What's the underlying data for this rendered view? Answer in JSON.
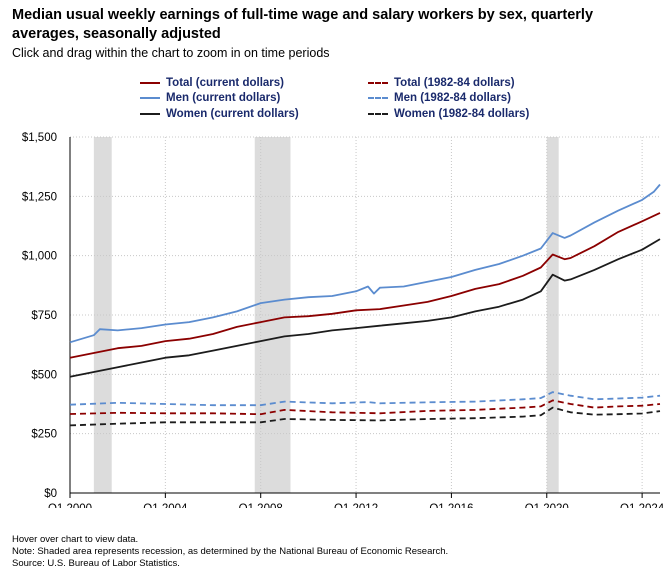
{
  "page": {
    "title": "Median usual weekly earnings of full-time wage and salary workers by sex, quarterly averages, seasonally adjusted",
    "subtitle": "Click and drag within the chart to zoom in on time periods",
    "notes": [
      "Hover over chart to view data.",
      "Note: Shaded area represents recession, as determined by the National Bureau of Economic Research.",
      "Source: U.S. Bureau of Labor Statistics."
    ]
  },
  "chart_data": {
    "type": "line",
    "title": "Median usual weekly earnings of full-time wage and salary workers by sex, quarterly averages, seasonally adjusted",
    "xlabel": "",
    "ylabel": "",
    "x_range": [
      2000.0,
      2024.75
    ],
    "ylim": [
      0,
      1500
    ],
    "y_ticks": [
      0,
      250,
      500,
      750,
      1000,
      1250,
      1500
    ],
    "y_tick_labels": [
      "$0",
      "$250",
      "$500",
      "$750",
      "$1,000",
      "$1,250",
      "$1,500"
    ],
    "x_ticks": [
      2000,
      2004,
      2008,
      2012,
      2016,
      2020,
      2024
    ],
    "x_tick_labels": [
      "Q1 2000",
      "Q1 2004",
      "Q1 2008",
      "Q1 2012",
      "Q1 2016",
      "Q1 2020",
      "Q1 2024"
    ],
    "grid": true,
    "recessions": [
      {
        "start": 2001.0,
        "end": 2001.75
      },
      {
        "start": 2007.75,
        "end": 2009.25
      },
      {
        "start": 2020.0,
        "end": 2020.5
      }
    ],
    "series": [
      {
        "name": "Total (current dollars)",
        "color": "#8b0000",
        "dash": "solid",
        "points": [
          [
            2000,
            570
          ],
          [
            2001,
            590
          ],
          [
            2002,
            610
          ],
          [
            2003,
            620
          ],
          [
            2004,
            640
          ],
          [
            2005,
            650
          ],
          [
            2006,
            670
          ],
          [
            2007,
            700
          ],
          [
            2008,
            720
          ],
          [
            2009,
            740
          ],
          [
            2010,
            745
          ],
          [
            2011,
            755
          ],
          [
            2012,
            770
          ],
          [
            2013,
            775
          ],
          [
            2014,
            790
          ],
          [
            2015,
            805
          ],
          [
            2016,
            830
          ],
          [
            2017,
            860
          ],
          [
            2018,
            880
          ],
          [
            2019,
            915
          ],
          [
            2019.75,
            950
          ],
          [
            2020.25,
            1005
          ],
          [
            2020.75,
            985
          ],
          [
            2021,
            990
          ],
          [
            2022,
            1040
          ],
          [
            2023,
            1100
          ],
          [
            2024,
            1145
          ],
          [
            2024.75,
            1180
          ]
        ]
      },
      {
        "name": "Men (current dollars)",
        "color": "#5b8ccf",
        "dash": "solid",
        "points": [
          [
            2000,
            635
          ],
          [
            2001,
            665
          ],
          [
            2001.25,
            690
          ],
          [
            2002,
            685
          ],
          [
            2003,
            695
          ],
          [
            2004,
            710
          ],
          [
            2005,
            720
          ],
          [
            2006,
            740
          ],
          [
            2007,
            765
          ],
          [
            2008,
            800
          ],
          [
            2009,
            815
          ],
          [
            2010,
            825
          ],
          [
            2011,
            830
          ],
          [
            2012,
            850
          ],
          [
            2012.5,
            870
          ],
          [
            2012.75,
            840
          ],
          [
            2013,
            865
          ],
          [
            2014,
            870
          ],
          [
            2015,
            890
          ],
          [
            2016,
            910
          ],
          [
            2017,
            940
          ],
          [
            2018,
            965
          ],
          [
            2019,
            1000
          ],
          [
            2019.75,
            1030
          ],
          [
            2020.25,
            1095
          ],
          [
            2020.75,
            1075
          ],
          [
            2021,
            1085
          ],
          [
            2022,
            1140
          ],
          [
            2023,
            1190
          ],
          [
            2024,
            1235
          ],
          [
            2024.5,
            1270
          ],
          [
            2024.75,
            1300
          ]
        ]
      },
      {
        "name": "Women (current dollars)",
        "color": "#1c1c1c",
        "dash": "solid",
        "points": [
          [
            2000,
            490
          ],
          [
            2001,
            510
          ],
          [
            2002,
            530
          ],
          [
            2003,
            550
          ],
          [
            2004,
            570
          ],
          [
            2005,
            580
          ],
          [
            2006,
            600
          ],
          [
            2007,
            620
          ],
          [
            2008,
            640
          ],
          [
            2009,
            660
          ],
          [
            2010,
            670
          ],
          [
            2011,
            685
          ],
          [
            2012,
            695
          ],
          [
            2013,
            705
          ],
          [
            2014,
            715
          ],
          [
            2015,
            725
          ],
          [
            2016,
            740
          ],
          [
            2017,
            765
          ],
          [
            2018,
            785
          ],
          [
            2019,
            815
          ],
          [
            2019.75,
            850
          ],
          [
            2020.25,
            920
          ],
          [
            2020.75,
            895
          ],
          [
            2021,
            900
          ],
          [
            2022,
            940
          ],
          [
            2023,
            985
          ],
          [
            2024,
            1025
          ],
          [
            2024.75,
            1070
          ]
        ]
      },
      {
        "name": "Total (1982-84 dollars)",
        "color": "#8b0000",
        "dash": "dashed",
        "points": [
          [
            2000,
            333
          ],
          [
            2002,
            338
          ],
          [
            2004,
            336
          ],
          [
            2006,
            336
          ],
          [
            2008,
            332
          ],
          [
            2009,
            350
          ],
          [
            2011,
            340
          ],
          [
            2013,
            336
          ],
          [
            2015,
            346
          ],
          [
            2017,
            350
          ],
          [
            2019,
            360
          ],
          [
            2019.75,
            365
          ],
          [
            2020.25,
            390
          ],
          [
            2021,
            375
          ],
          [
            2022,
            360
          ],
          [
            2023,
            365
          ],
          [
            2024,
            368
          ],
          [
            2024.75,
            375
          ]
        ]
      },
      {
        "name": "Men (1982-84 dollars)",
        "color": "#5b8ccf",
        "dash": "dashed",
        "points": [
          [
            2000,
            372
          ],
          [
            2002,
            380
          ],
          [
            2004,
            375
          ],
          [
            2006,
            370
          ],
          [
            2008,
            370
          ],
          [
            2009,
            385
          ],
          [
            2011,
            378
          ],
          [
            2012.5,
            383
          ],
          [
            2013,
            378
          ],
          [
            2015,
            382
          ],
          [
            2017,
            385
          ],
          [
            2019,
            395
          ],
          [
            2019.75,
            400
          ],
          [
            2020.25,
            425
          ],
          [
            2021,
            410
          ],
          [
            2022,
            395
          ],
          [
            2023,
            398
          ],
          [
            2024,
            402
          ],
          [
            2024.75,
            410
          ]
        ]
      },
      {
        "name": "Women (1982-84 dollars)",
        "color": "#1c1c1c",
        "dash": "dashed",
        "points": [
          [
            2000,
            285
          ],
          [
            2002,
            292
          ],
          [
            2004,
            298
          ],
          [
            2006,
            298
          ],
          [
            2008,
            298
          ],
          [
            2009,
            312
          ],
          [
            2011,
            308
          ],
          [
            2013,
            306
          ],
          [
            2015,
            312
          ],
          [
            2017,
            315
          ],
          [
            2019,
            322
          ],
          [
            2019.75,
            328
          ],
          [
            2020.25,
            360
          ],
          [
            2021,
            340
          ],
          [
            2022,
            330
          ],
          [
            2023,
            332
          ],
          [
            2024,
            335
          ],
          [
            2024.75,
            345
          ]
        ]
      }
    ]
  }
}
